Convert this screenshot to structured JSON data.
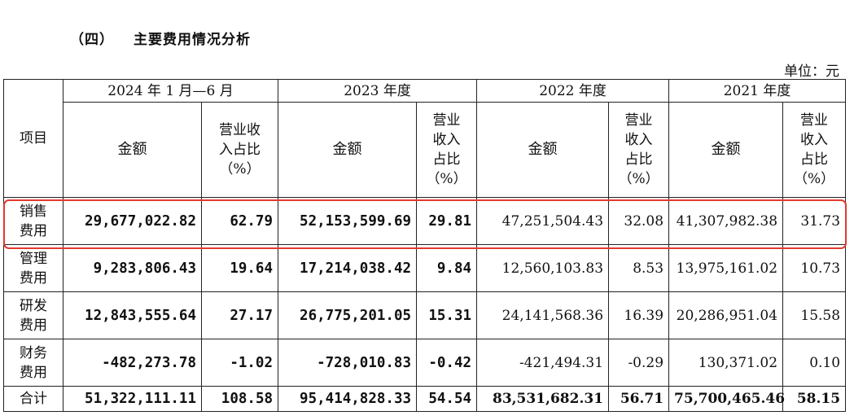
{
  "heading": {
    "number": "（四）",
    "title": "主要费用情况分析"
  },
  "unit": "单位：元",
  "table": {
    "item_header": "项目",
    "periods": [
      "2024 年 1 月—6 月",
      "2023 年度",
      "2022 年度",
      "2021 年度"
    ],
    "amount_header": "金额",
    "ratio_header_p1": "营业收\n入占比\n（%）",
    "ratio_header": "营业\n收入\n占比\n（%）",
    "rows": [
      {
        "name": "销售\n费用",
        "values": [
          "29,677,022.82",
          "62.79",
          "52,153,599.69",
          "29.81",
          "47,251,504.43",
          "32.08",
          "41,307,982.38",
          "31.73"
        ]
      },
      {
        "name": "管理\n费用",
        "values": [
          "9,283,806.43",
          "19.64",
          "17,214,038.42",
          "9.84",
          "12,560,103.83",
          "8.53",
          "13,975,161.02",
          "10.73"
        ]
      },
      {
        "name": "研发\n费用",
        "values": [
          "12,843,555.64",
          "27.17",
          "26,775,201.05",
          "15.31",
          "24,141,568.36",
          "16.39",
          "20,286,951.04",
          "15.58"
        ]
      },
      {
        "name": "财务\n费用",
        "values": [
          "-482,273.78",
          "-1.02",
          "-728,010.83",
          "-0.42",
          "-421,494.31",
          "-0.29",
          "130,371.02",
          "0.10"
        ]
      },
      {
        "name": "合计",
        "values": [
          "51,322,111.11",
          "108.58",
          "95,414,828.33",
          "54.54",
          "83,531,682.31",
          "56.71",
          "75,700,465.46",
          "58.15"
        ]
      }
    ]
  },
  "colors": {
    "highlight": "#e23a2e",
    "border": "#222222"
  }
}
